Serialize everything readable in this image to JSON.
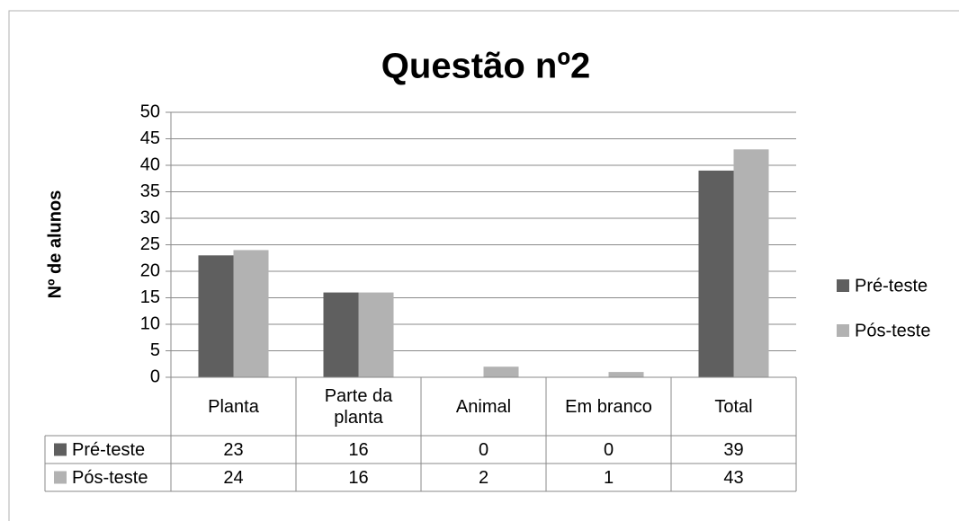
{
  "chart_data": {
    "type": "bar",
    "title": "Questão nº2",
    "y_label": "Nº de alunos",
    "categories": [
      "Planta",
      "Parte da planta",
      "Animal",
      "Em branco",
      "Total"
    ],
    "series": [
      {
        "name": "Pré-teste",
        "color": "#5f5f5f",
        "values": [
          23,
          16,
          0,
          0,
          39
        ]
      },
      {
        "name": "Pós-teste",
        "color": "#b2b2b2",
        "values": [
          24,
          16,
          2,
          1,
          43
        ]
      }
    ],
    "ylim": [
      0,
      50
    ],
    "yticks": [
      0,
      5,
      10,
      15,
      20,
      25,
      30,
      35,
      40,
      45,
      50
    ],
    "grid": true,
    "legend": "right",
    "data_table": true
  }
}
